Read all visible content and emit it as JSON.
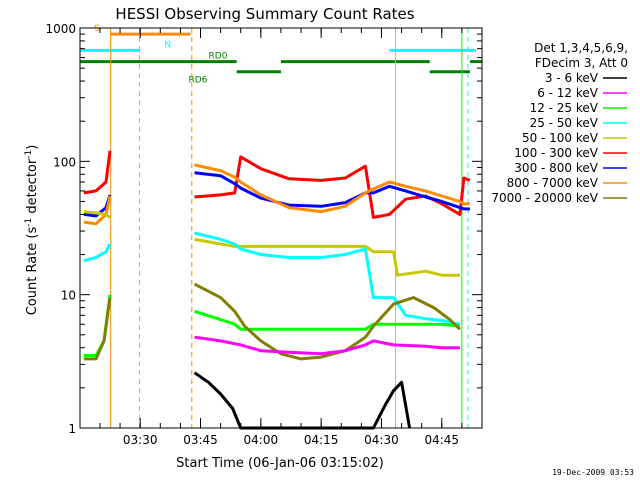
{
  "chart_data": {
    "type": "line",
    "title": "HESSI Observing Summary Count Rates",
    "xlabel": "Start Time (06-Jan-06 03:15:02)",
    "ylabel_parts": {
      "pre": "Count Rate (s",
      "sup1": "-1",
      "mid": " detector",
      "sup2": "-1",
      "post": ")"
    },
    "y_scale": "log",
    "ylim": [
      1,
      1000
    ],
    "y_ticks": [
      {
        "v": 1,
        "label": "1"
      },
      {
        "v": 10,
        "label": "10"
      },
      {
        "v": 100,
        "label": "100"
      },
      {
        "v": 1000,
        "label": "1000"
      }
    ],
    "xlim": [
      "03:15:02",
      "04:55:00"
    ],
    "x_ticks": [
      {
        "t": "03:30",
        "label": "03:30"
      },
      {
        "t": "03:45",
        "label": "03:45"
      },
      {
        "t": "04:00",
        "label": "04:00"
      },
      {
        "t": "04:15",
        "label": "04:15"
      },
      {
        "t": "04:30",
        "label": "04:30"
      },
      {
        "t": "04:45",
        "label": "04:45"
      }
    ],
    "legend": {
      "position": "right",
      "header": [
        "Det 1,3,4,5,6,9,",
        "FDecim 3, Att 0"
      ],
      "entries": [
        {
          "label": "3 - 6 keV",
          "color": "#000000"
        },
        {
          "label": "6 - 12 keV",
          "color": "#ff00ff"
        },
        {
          "label": "12 - 25 keV",
          "color": "#00ff00"
        },
        {
          "label": "25 - 50 keV",
          "color": "#00ffff"
        },
        {
          "label": "50 - 100 keV",
          "color": "#c8c800"
        },
        {
          "label": "100 - 300 keV",
          "color": "#ff0000"
        },
        {
          "label": "300 - 800 keV",
          "color": "#0000ff"
        },
        {
          "label": "800 - 7000 keV",
          "color": "#ff8c00"
        },
        {
          "label": "7000 - 20000 keV",
          "color": "#808000"
        }
      ]
    },
    "flag_bars": [
      {
        "label": "S",
        "color": "#ff8c00",
        "segments": [
          [
            "03:22:30",
            "03:42:30"
          ]
        ],
        "y": 900,
        "label_at": "03:18:30"
      },
      {
        "label": "N",
        "color": "#00ffff",
        "segments": [
          [
            "03:15:02",
            "03:30:00"
          ],
          [
            "04:32:00",
            "04:53:30"
          ]
        ],
        "y": 680,
        "label_at": "03:36:00"
      },
      {
        "label": "RD0",
        "color": "#008000",
        "segments": [
          [
            "03:15:02",
            "03:54:00"
          ],
          [
            "04:05:00",
            "04:42:00"
          ],
          [
            "04:52:00",
            "04:55:00"
          ]
        ],
        "y": 560,
        "label_at": "03:47:00"
      },
      {
        "label": "RD6",
        "color": "#008000",
        "segments": [
          [
            "03:54:00",
            "04:05:00"
          ],
          [
            "04:42:00",
            "04:52:00"
          ]
        ],
        "y": 470,
        "label_at": "03:42:00",
        "label_below": true
      }
    ],
    "event_lines": [
      {
        "t": "03:22:40",
        "color": "#ff8c00",
        "style": "solid"
      },
      {
        "t": "03:29:50",
        "color": "#00ffff",
        "style": "dashed"
      },
      {
        "t": "03:42:50",
        "color": "#ff8c00",
        "style": "dashed"
      },
      {
        "t": "04:33:30",
        "color": "#00ffff",
        "style": "solid"
      },
      {
        "t": "04:51:30",
        "color": "#00ffff",
        "style": "dashed"
      },
      {
        "t": "03:15:02",
        "color": "#00ffff",
        "style": "solid"
      },
      {
        "t": "04:50:00",
        "color": "#00ff00",
        "style": "solid"
      }
    ],
    "data_gaps": [
      [
        "03:22:45",
        "03:43:30"
      ],
      [
        "04:50:00",
        "04:51:00"
      ]
    ],
    "series": [
      {
        "band": "100 - 300 keV",
        "color": "#ff0000",
        "points": [
          [
            "03:16:00",
            58
          ],
          [
            "03:19:00",
            60
          ],
          [
            "03:21:30",
            70
          ],
          [
            "03:22:30",
            120
          ],
          [
            "03:43:30",
            54
          ],
          [
            "03:50:00",
            56
          ],
          [
            "03:53:30",
            58
          ],
          [
            "03:55:00",
            108
          ],
          [
            "04:00:00",
            88
          ],
          [
            "04:07:00",
            74
          ],
          [
            "04:15:00",
            72
          ],
          [
            "04:21:00",
            75
          ],
          [
            "04:26:00",
            92
          ],
          [
            "04:28:00",
            38
          ],
          [
            "04:32:00",
            40
          ],
          [
            "04:36:00",
            52
          ],
          [
            "04:41:00",
            55
          ],
          [
            "04:45:00",
            48
          ],
          [
            "04:49:30",
            40
          ],
          [
            "04:50:30",
            75
          ],
          [
            "04:52:00",
            72
          ]
        ]
      },
      {
        "band": "300 - 800 keV",
        "color": "#0000ff",
        "points": [
          [
            "03:16:00",
            40
          ],
          [
            "03:19:00",
            39
          ],
          [
            "03:21:30",
            45
          ],
          [
            "03:22:30",
            56
          ],
          [
            "03:43:30",
            82
          ],
          [
            "03:50:00",
            78
          ],
          [
            "03:53:30",
            68
          ],
          [
            "03:55:00",
            63
          ],
          [
            "04:00:00",
            53
          ],
          [
            "04:07:00",
            47
          ],
          [
            "04:15:00",
            46
          ],
          [
            "04:21:00",
            49
          ],
          [
            "04:26:00",
            58
          ],
          [
            "04:28:00",
            58
          ],
          [
            "04:32:00",
            65
          ],
          [
            "04:36:00",
            60
          ],
          [
            "04:41:00",
            54
          ],
          [
            "04:45:00",
            50
          ],
          [
            "04:49:30",
            45
          ],
          [
            "04:50:30",
            44
          ],
          [
            "04:52:00",
            44
          ]
        ]
      },
      {
        "band": "800 - 7000 keV",
        "color": "#ff8c00",
        "points": [
          [
            "03:16:00",
            35
          ],
          [
            "03:19:00",
            34
          ],
          [
            "03:21:30",
            40
          ],
          [
            "03:22:30",
            55
          ],
          [
            "03:43:30",
            94
          ],
          [
            "03:50:00",
            85
          ],
          [
            "03:53:30",
            76
          ],
          [
            "03:55:00",
            70
          ],
          [
            "04:00:00",
            56
          ],
          [
            "04:07:00",
            45
          ],
          [
            "04:15:00",
            42
          ],
          [
            "04:21:00",
            46
          ],
          [
            "04:26:00",
            58
          ],
          [
            "04:28:00",
            62
          ],
          [
            "04:32:00",
            70
          ],
          [
            "04:36:00",
            65
          ],
          [
            "04:41:00",
            60
          ],
          [
            "04:45:00",
            55
          ],
          [
            "04:49:30",
            50
          ],
          [
            "04:50:30",
            48
          ],
          [
            "04:52:00",
            48
          ]
        ]
      },
      {
        "band": "50 - 100 keV",
        "color": "#c8c800",
        "points": [
          [
            "03:16:00",
            42
          ],
          [
            "03:19:00",
            41
          ],
          [
            "03:21:30",
            40
          ],
          [
            "03:22:30",
            38
          ],
          [
            "03:43:30",
            26
          ],
          [
            "03:50:00",
            24
          ],
          [
            "03:53:30",
            23
          ],
          [
            "04:26:00",
            23
          ],
          [
            "04:28:00",
            21
          ],
          [
            "04:33:00",
            21
          ],
          [
            "04:34:00",
            14
          ],
          [
            "04:41:00",
            15
          ],
          [
            "04:45:00",
            14
          ],
          [
            "04:49:30",
            14
          ]
        ]
      },
      {
        "band": "25 - 50 keV",
        "color": "#00ffff",
        "points": [
          [
            "03:16:00",
            18
          ],
          [
            "03:19:00",
            19
          ],
          [
            "03:21:30",
            21
          ],
          [
            "03:22:30",
            24
          ],
          [
            "03:43:30",
            29
          ],
          [
            "03:50:00",
            26
          ],
          [
            "03:53:30",
            24
          ],
          [
            "03:55:00",
            22
          ],
          [
            "04:00:00",
            20
          ],
          [
            "04:07:00",
            19
          ],
          [
            "04:15:00",
            19
          ],
          [
            "04:21:00",
            20
          ],
          [
            "04:26:00",
            22
          ],
          [
            "04:28:00",
            9.5
          ],
          [
            "04:33:00",
            9.5
          ],
          [
            "04:36:00",
            7
          ],
          [
            "04:41:00",
            6.6
          ],
          [
            "04:45:00",
            6.4
          ],
          [
            "04:49:30",
            6
          ]
        ]
      },
      {
        "band": "12 - 25 keV",
        "color": "#00ff00",
        "points": [
          [
            "03:16:00",
            3.5
          ],
          [
            "03:19:00",
            3.5
          ],
          [
            "03:21:00",
            4.5
          ],
          [
            "03:22:30",
            10
          ],
          [
            "03:43:30",
            7.5
          ],
          [
            "03:50:00",
            6.5
          ],
          [
            "03:53:30",
            6
          ],
          [
            "03:55:00",
            5.5
          ],
          [
            "04:07:00",
            5.5
          ],
          [
            "04:15:00",
            5.5
          ],
          [
            "04:21:00",
            5.5
          ],
          [
            "04:26:00",
            5.5
          ],
          [
            "04:28:00",
            6
          ],
          [
            "04:33:00",
            6
          ],
          [
            "04:41:00",
            6
          ],
          [
            "04:45:00",
            6
          ],
          [
            "04:49:30",
            5.8
          ]
        ]
      },
      {
        "band": "7000 - 20000 keV",
        "color": "#808000",
        "points": [
          [
            "03:16:00",
            3.3
          ],
          [
            "03:19:00",
            3.3
          ],
          [
            "03:21:00",
            4.5
          ],
          [
            "03:22:30",
            9.5
          ],
          [
            "03:43:30",
            12
          ],
          [
            "03:50:00",
            9.5
          ],
          [
            "03:53:30",
            7.5
          ],
          [
            "03:56:00",
            5.8
          ],
          [
            "04:00:00",
            4.5
          ],
          [
            "04:05:00",
            3.6
          ],
          [
            "04:10:00",
            3.3
          ],
          [
            "04:15:00",
            3.4
          ],
          [
            "04:21:00",
            3.8
          ],
          [
            "04:26:00",
            4.8
          ],
          [
            "04:28:00",
            5.8
          ],
          [
            "04:33:00",
            8.5
          ],
          [
            "04:38:00",
            9.5
          ],
          [
            "04:43:00",
            8
          ],
          [
            "04:47:00",
            6.5
          ],
          [
            "04:49:30",
            5.5
          ]
        ]
      },
      {
        "band": "6 - 12 keV",
        "color": "#ff00ff",
        "points": [
          [
            "03:43:30",
            4.8
          ],
          [
            "03:50:00",
            4.5
          ],
          [
            "03:55:00",
            4.2
          ],
          [
            "04:00:00",
            3.8
          ],
          [
            "04:07:00",
            3.7
          ],
          [
            "04:15:00",
            3.6
          ],
          [
            "04:21:00",
            3.8
          ],
          [
            "04:26:00",
            4.2
          ],
          [
            "04:28:00",
            4.5
          ],
          [
            "04:33:00",
            4.2
          ],
          [
            "04:41:00",
            4.1
          ],
          [
            "04:45:00",
            4.0
          ],
          [
            "04:49:30",
            4.0
          ]
        ]
      },
      {
        "band": "3 - 6 keV",
        "color": "#000000",
        "points": [
          [
            "03:43:30",
            2.6
          ],
          [
            "03:47:00",
            2.2
          ],
          [
            "03:50:00",
            1.8
          ],
          [
            "03:53:00",
            1.4
          ],
          [
            "03:55:00",
            1.0
          ],
          [
            "04:28:00",
            1.0
          ],
          [
            "04:31:00",
            1.5
          ],
          [
            "04:33:00",
            1.9
          ],
          [
            "04:35:00",
            2.2
          ],
          [
            "04:37:00",
            1.0
          ]
        ]
      }
    ],
    "footer_date": "19-Dec-2009 03:53"
  }
}
